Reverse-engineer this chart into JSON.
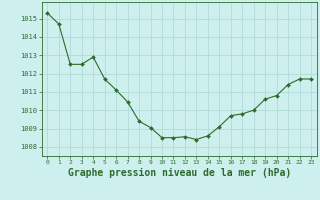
{
  "x": [
    0,
    1,
    2,
    3,
    4,
    5,
    6,
    7,
    8,
    9,
    10,
    11,
    12,
    13,
    14,
    15,
    16,
    17,
    18,
    19,
    20,
    21,
    22,
    23
  ],
  "y": [
    1015.3,
    1014.7,
    1012.5,
    1012.5,
    1012.9,
    1011.7,
    1011.1,
    1010.45,
    1009.4,
    1009.05,
    1008.5,
    1008.5,
    1008.55,
    1008.4,
    1008.6,
    1009.1,
    1009.7,
    1009.8,
    1010.0,
    1010.6,
    1010.8,
    1011.4,
    1011.7,
    1011.7
  ],
  "line_color": "#2d6a2d",
  "marker": "D",
  "marker_size": 2.0,
  "bg_color": "#cdf0ee",
  "grid_color": "#b0dbd8",
  "xlabel": "Graphe pression niveau de la mer (hPa)",
  "xlabel_fontsize": 7.0,
  "ylabel_ticks": [
    1008,
    1009,
    1010,
    1011,
    1012,
    1013,
    1014,
    1015
  ],
  "xlim": [
    -0.5,
    23.5
  ],
  "ylim": [
    1007.5,
    1015.9
  ],
  "xtick_fontsize": 4.5,
  "ytick_fontsize": 5.0,
  "xtick_labels": [
    "0",
    "1",
    "2",
    "3",
    "4",
    "5",
    "6",
    "7",
    "8",
    "9",
    "10",
    "11",
    "12",
    "13",
    "14",
    "15",
    "16",
    "17",
    "18",
    "19",
    "20",
    "21",
    "22",
    "23"
  ]
}
